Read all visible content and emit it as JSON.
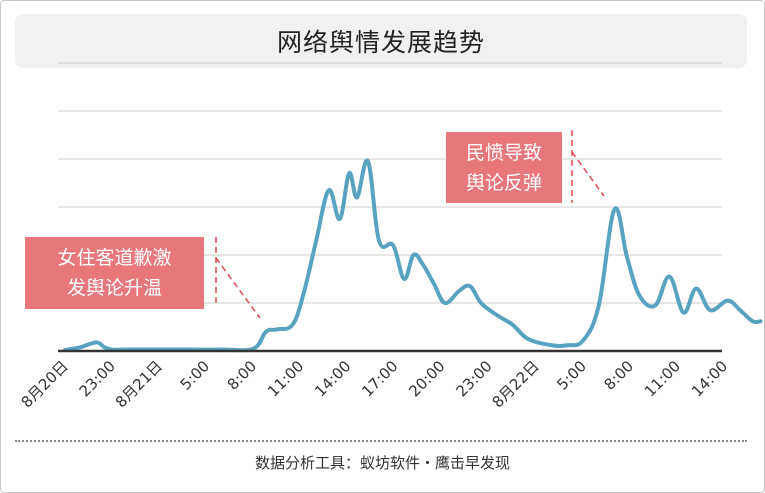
{
  "header": {
    "title": "网络舆情发展趋势"
  },
  "footer": {
    "source": "数据分析工具：蚁坊软件・鹰击早发现"
  },
  "annotations": [
    {
      "line1": "女住客道歉激",
      "line2": "发舆论升温",
      "x": 13
    },
    {
      "line1": "民愤导致",
      "line2": "舆论反弹",
      "x": 37.4
    }
  ],
  "colors": {
    "line": "#5aa3c0",
    "annotation": "#e8777b",
    "grid": "#cccccc",
    "axis": "#333333"
  },
  "chart_data": {
    "type": "line",
    "title": "网络舆情发展趋势",
    "xlabel": "",
    "ylabel": "",
    "ylim": [
      0,
      6
    ],
    "grid": true,
    "x_ticks": [
      {
        "x": 0,
        "label": "8月20日"
      },
      {
        "x": 3,
        "label": "23:00"
      },
      {
        "x": 6,
        "label": "8月21日"
      },
      {
        "x": 9,
        "label": "5:00"
      },
      {
        "x": 12,
        "label": "8:00"
      },
      {
        "x": 15,
        "label": "11:00"
      },
      {
        "x": 18,
        "label": "14:00"
      },
      {
        "x": 21,
        "label": "17:00"
      },
      {
        "x": 24,
        "label": "20:00"
      },
      {
        "x": 27,
        "label": "23:00"
      },
      {
        "x": 30,
        "label": "8月22日"
      },
      {
        "x": 33,
        "label": "5:00"
      },
      {
        "x": 36,
        "label": "8:00"
      },
      {
        "x": 39,
        "label": "11:00"
      },
      {
        "x": 42,
        "label": "14:00"
      }
    ],
    "series": [
      {
        "x": [
          0,
          1,
          2,
          2.5,
          3,
          4,
          6,
          8,
          10,
          12,
          12.8,
          13.5,
          14.5,
          15.2,
          16,
          16.8,
          17.5,
          18.1,
          18.6,
          19.3,
          20,
          20.9,
          21.6,
          22.2,
          22.8,
          23.5,
          24.2,
          25.1,
          25.8,
          26.5,
          27.5,
          28.5,
          29.5,
          31,
          32,
          33,
          34,
          35,
          35.8,
          36.6,
          37.6,
          38.5,
          39.4,
          40.2,
          41.1,
          42.2,
          43,
          43.8,
          44.3
        ],
        "y": [
          0.02,
          0.08,
          0.18,
          0.08,
          0.03,
          0.03,
          0.03,
          0.03,
          0.03,
          0.05,
          0.4,
          0.45,
          0.55,
          1.2,
          2.3,
          3.35,
          2.75,
          3.7,
          3.2,
          3.95,
          2.3,
          2.2,
          1.5,
          2.0,
          1.8,
          1.4,
          1.0,
          1.25,
          1.35,
          1.0,
          0.75,
          0.55,
          0.25,
          0.12,
          0.12,
          0.22,
          0.95,
          2.95,
          1.95,
          1.15,
          0.95,
          1.55,
          0.8,
          1.3,
          0.85,
          1.05,
          0.85,
          0.62,
          0.62
        ]
      }
    ]
  }
}
